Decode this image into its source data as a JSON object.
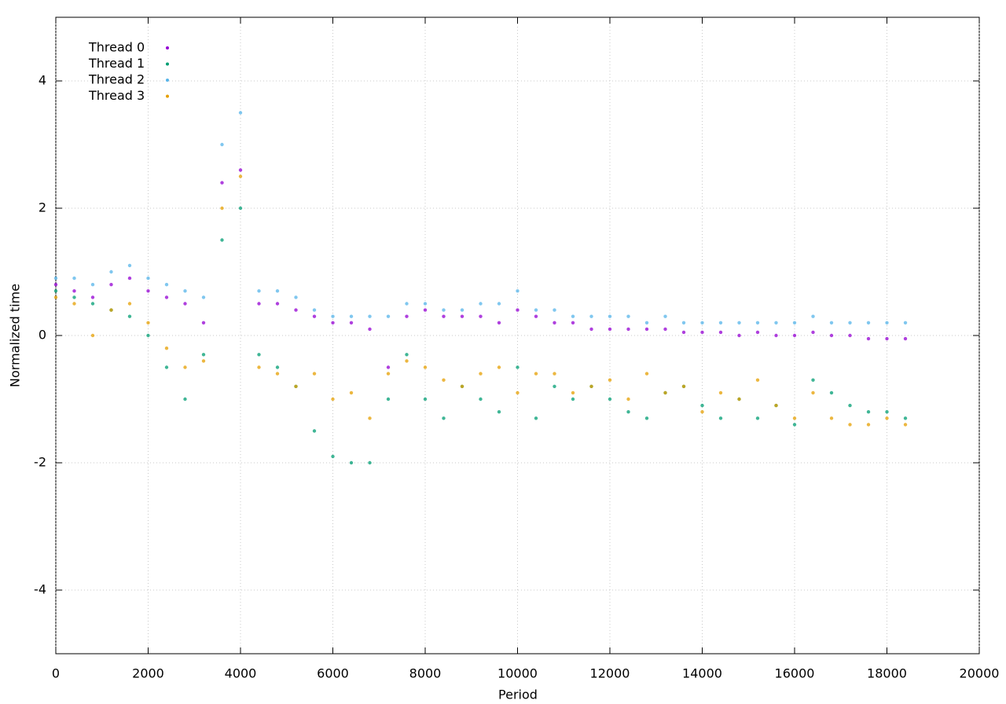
{
  "chart_data": {
    "type": "scatter",
    "xlabel": "Period",
    "ylabel": "Normalized time",
    "x": [
      0,
      400,
      800,
      1200,
      1600,
      2000,
      2400,
      2800,
      3200,
      3600,
      4000,
      4400,
      4800,
      5200,
      5600,
      6000,
      6400,
      6800,
      7200,
      7600,
      8000,
      8400,
      8800,
      9200,
      9600,
      10000,
      10400,
      10800,
      11200,
      11600,
      12000,
      12400,
      12800,
      13200,
      13600,
      14000,
      14400,
      14800,
      15200,
      15600,
      16000,
      16400,
      16800,
      17200,
      17600,
      18000,
      18400
    ],
    "series": [
      {
        "name": "Thread 0",
        "color": "#9400d3",
        "values": [
          0.8,
          0.7,
          0.6,
          0.8,
          0.9,
          0.7,
          0.6,
          0.5,
          0.2,
          2.4,
          2.6,
          0.5,
          0.5,
          0.4,
          0.3,
          0.2,
          0.2,
          0.1,
          -0.5,
          0.3,
          0.4,
          0.3,
          0.3,
          0.3,
          0.2,
          0.4,
          0.3,
          0.2,
          0.2,
          0.1,
          0.1,
          0.1,
          0.1,
          0.1,
          0.05,
          0.05,
          0.05,
          0,
          0.05,
          0,
          0,
          0.05,
          0,
          0,
          -0.05,
          -0.05,
          -0.05
        ]
      },
      {
        "name": "Thread 1",
        "color": "#009e73",
        "values": [
          0.7,
          0.6,
          0.5,
          0.4,
          0.3,
          0,
          -0.5,
          -1.0,
          -0.3,
          1.5,
          2.0,
          -0.3,
          -0.5,
          -0.8,
          -1.5,
          -1.9,
          -2.0,
          -2.0,
          -1.0,
          -0.3,
          -1.0,
          -1.3,
          -0.8,
          -1.0,
          -1.2,
          -0.5,
          -1.3,
          -0.8,
          -1.0,
          -0.8,
          -1.0,
          -1.2,
          -1.3,
          -0.9,
          -0.8,
          -1.1,
          -1.3,
          -1.0,
          -1.3,
          -1.1,
          -1.4,
          -0.7,
          -0.9,
          -1.1,
          -1.2,
          -1.2,
          -1.3
        ]
      },
      {
        "name": "Thread 2",
        "color": "#56b4e9",
        "values": [
          0.9,
          0.9,
          0.8,
          1.0,
          1.1,
          0.9,
          0.8,
          0.7,
          0.6,
          3.0,
          3.5,
          0.7,
          0.7,
          0.6,
          0.4,
          0.3,
          0.3,
          0.3,
          0.3,
          0.5,
          0.5,
          0.4,
          0.4,
          0.5,
          0.5,
          0.7,
          0.4,
          0.4,
          0.3,
          0.3,
          0.3,
          0.3,
          0.2,
          0.3,
          0.2,
          0.2,
          0.2,
          0.2,
          0.2,
          0.2,
          0.2,
          0.3,
          0.2,
          0.2,
          0.2,
          0.2,
          0.2
        ]
      },
      {
        "name": "Thread 3",
        "color": "#e69f00",
        "values": [
          0.6,
          0.5,
          0,
          0.4,
          0.5,
          0.2,
          -0.2,
          -0.5,
          -0.4,
          2.0,
          2.5,
          -0.5,
          -0.6,
          -0.8,
          -0.6,
          -1.0,
          -0.9,
          -1.3,
          -0.6,
          -0.4,
          -0.5,
          -0.7,
          -0.8,
          -0.6,
          -0.5,
          -0.9,
          -0.6,
          -0.6,
          -0.9,
          -0.8,
          -0.7,
          -1.0,
          -0.6,
          -0.9,
          -0.8,
          -1.2,
          -0.9,
          -1.0,
          -0.7,
          -1.1,
          -1.3,
          -0.9,
          -1.3,
          -1.4,
          -1.4,
          -1.3,
          -1.4
        ]
      }
    ],
    "xlim": [
      0,
      20000
    ],
    "xticks": [
      0,
      2000,
      4000,
      6000,
      8000,
      10000,
      12000,
      14000,
      16000,
      18000,
      20000
    ],
    "ylim": [
      -5,
      5
    ],
    "yticks": [
      -4,
      -2,
      0,
      2,
      4
    ],
    "grid": true,
    "legend": "top-left"
  }
}
